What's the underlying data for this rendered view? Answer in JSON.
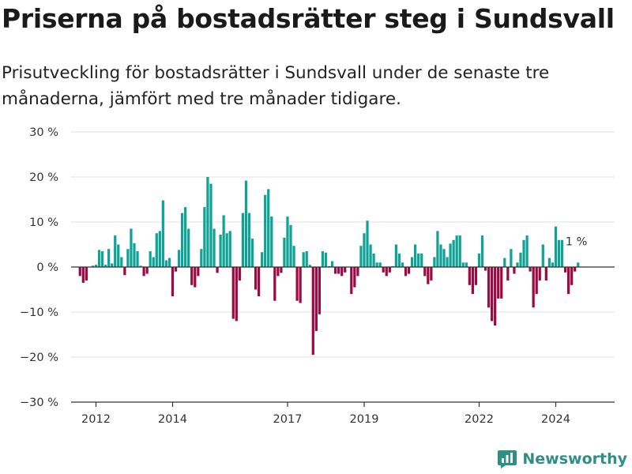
{
  "header": {
    "title": "Priserna på bostadsrätter steg i Sundsvall",
    "subtitle": "Prisutveckling för bostadsrätter i Sundsvall under de senaste tre månaderna, jämfört med tre månader tidigare."
  },
  "brand": {
    "name": "Newsworthy",
    "color": "#2f8f86"
  },
  "chart_data": {
    "type": "bar",
    "title": "Priserna på bostadsrätter steg i Sundsvall",
    "subtitle": "Prisutveckling för bostadsrätter i Sundsvall under de senaste tre månaderna, jämfört med tre månader tidigare.",
    "xlabel": "",
    "ylabel": "",
    "ylim": [
      -30,
      30
    ],
    "y_ticks": [
      30,
      20,
      10,
      0,
      -10,
      -20,
      -30
    ],
    "y_tick_labels": [
      "30 %",
      "20 %",
      "10 %",
      "0 %",
      "−10 %",
      "−20 %",
      "−30 %"
    ],
    "x_ticks": [
      2012,
      2014,
      2017,
      2019,
      2022,
      2024
    ],
    "x_tick_labels": [
      "2012",
      "2014",
      "2017",
      "2019",
      "2022",
      "2024"
    ],
    "x_start": 2011.583,
    "x_step": 0.08333,
    "grid": true,
    "legend": "none",
    "colors": {
      "positive": "#0fa295",
      "negative": "#9b0a43"
    },
    "annotation": {
      "label": "1 %",
      "target": "last"
    },
    "values": [
      -2,
      -3.5,
      -3,
      0,
      0.3,
      0.5,
      3.8,
      3.5,
      0.5,
      4,
      0.8,
      7,
      5,
      2.2,
      -1.8,
      4,
      8.5,
      5.3,
      3.5,
      0.3,
      -2,
      -1.5,
      3.5,
      2.2,
      7.5,
      8,
      14.8,
      1.5,
      2,
      -6.5,
      -1,
      3.8,
      12,
      13.3,
      8.5,
      -4,
      -4.5,
      -2,
      4,
      13.3,
      20,
      18.5,
      8.5,
      -1.3,
      7.2,
      11.5,
      7.5,
      8,
      -11.5,
      -12,
      -3,
      12,
      19.2,
      12,
      6.3,
      -5,
      -6.5,
      3.3,
      16,
      17.3,
      11.2,
      -7.5,
      -2,
      -1.3,
      6.5,
      11.2,
      9.3,
      4.7,
      -7.5,
      -8,
      3.3,
      3.5,
      0.5,
      -19.5,
      -14.2,
      -10.5,
      3.5,
      3.2,
      0.2,
      1.3,
      -1.5,
      -1.5,
      -2,
      -1.2,
      0,
      -6,
      -4.5,
      -2,
      4.7,
      7.5,
      10.3,
      5,
      3,
      1,
      1,
      -1.2,
      -2,
      -1.2,
      0.2,
      5,
      3,
      1,
      -2,
      -1.5,
      2.2,
      5,
      3,
      3,
      -2,
      -3.8,
      -3,
      2.2,
      8,
      5,
      4,
      2.2,
      5.2,
      6,
      7,
      7,
      1,
      1,
      -4,
      -6,
      -4,
      3,
      7,
      -0.8,
      -9,
      -12,
      -13,
      -7,
      -7,
      2,
      -3,
      4,
      -1.5,
      1,
      3.2,
      6,
      7,
      -1,
      -9,
      -6,
      -3,
      5,
      -3,
      2,
      1,
      9,
      6,
      6,
      -1.2,
      -6,
      -4,
      -1,
      1
    ]
  }
}
